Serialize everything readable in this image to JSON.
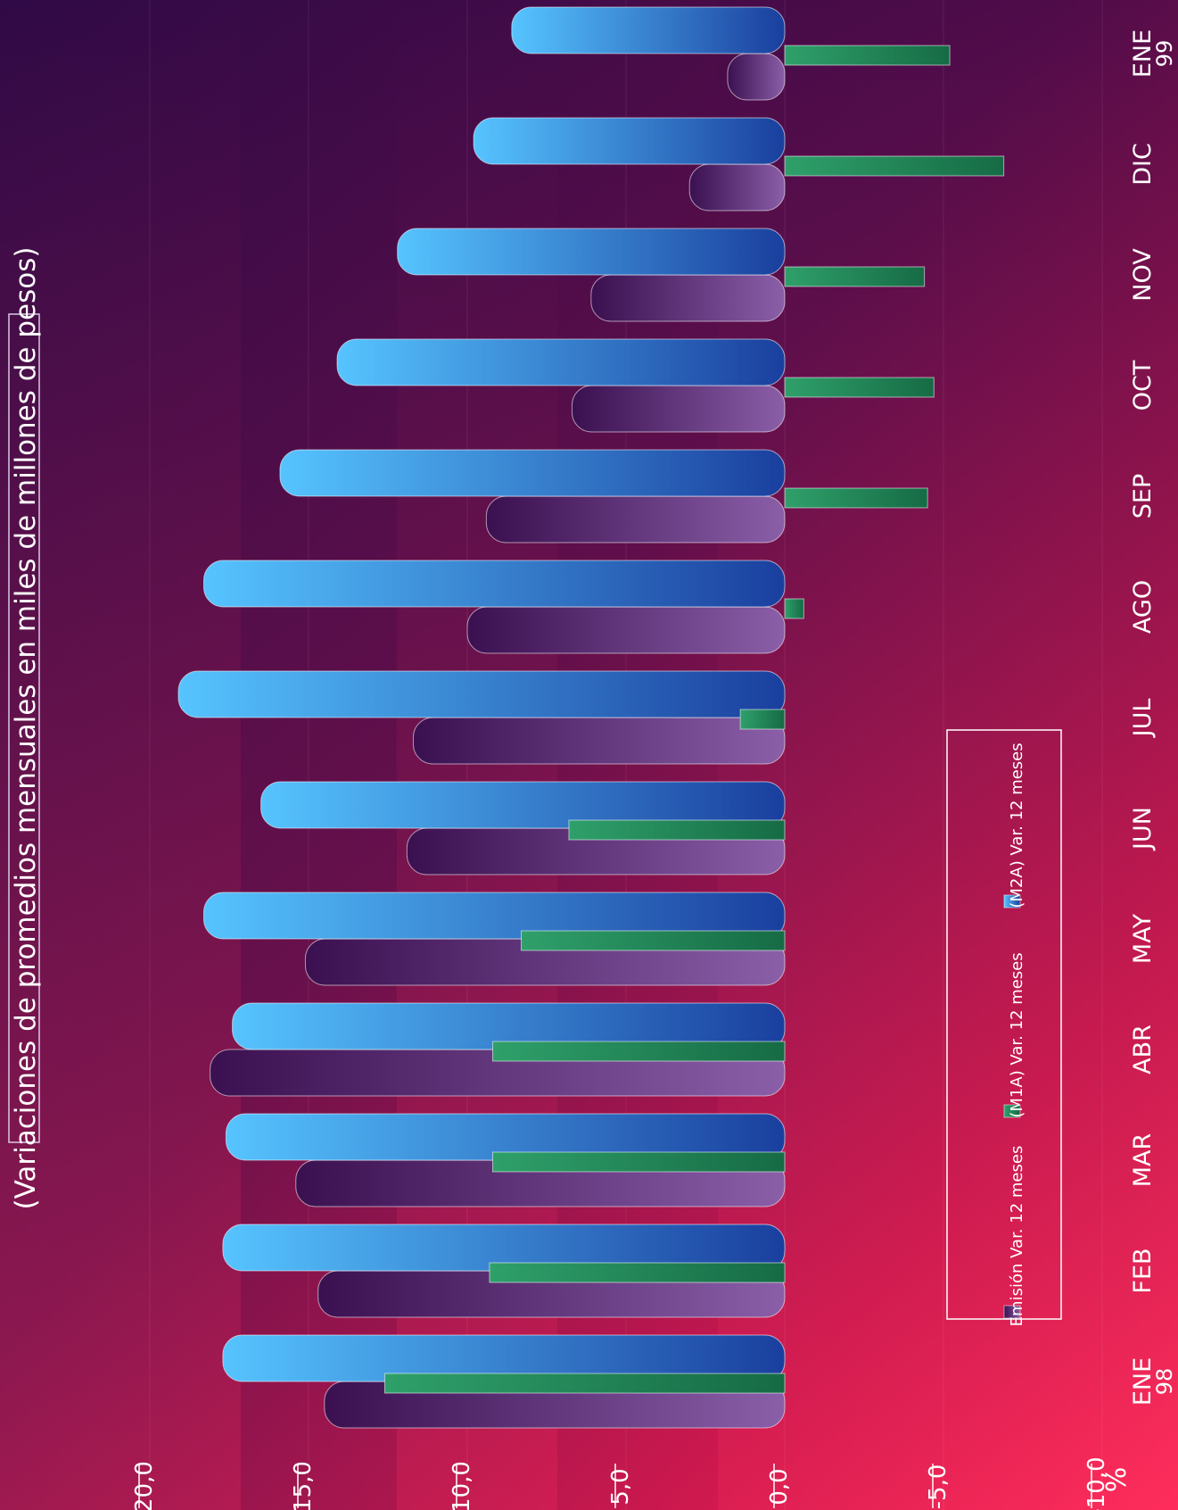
{
  "chart_data": {
    "type": "bar",
    "orientation": "horizontal",
    "title": "(Variaciones de promedios mensuales en miles de millones de pesos)",
    "unit_label": "%",
    "categories": [
      {
        "line1": "ENE",
        "line2": "98"
      },
      {
        "line1": "FEB",
        "line2": ""
      },
      {
        "line1": "MAR",
        "line2": ""
      },
      {
        "line1": "ABR",
        "line2": ""
      },
      {
        "line1": "MAY",
        "line2": ""
      },
      {
        "line1": "JUN",
        "line2": ""
      },
      {
        "line1": "JUL",
        "line2": ""
      },
      {
        "line1": "AGO",
        "line2": ""
      },
      {
        "line1": "SEP",
        "line2": ""
      },
      {
        "line1": "OCT",
        "line2": ""
      },
      {
        "line1": "NOV",
        "line2": ""
      },
      {
        "line1": "DIC",
        "line2": ""
      },
      {
        "line1": "ENE",
        "line2": "99"
      }
    ],
    "value_axis": {
      "min": -10,
      "max": 22,
      "ticks": [
        -10,
        -5,
        0,
        5,
        10,
        15,
        20
      ],
      "tick_labels": [
        "-10,0",
        "-5,0",
        "0,0",
        "5,0",
        "10,0",
        "15,0",
        "20,0"
      ]
    },
    "series": [
      {
        "name": "Emisión Var. 12 meses",
        "color": "#6b3f8c",
        "values": [
          14.5,
          14.7,
          15.4,
          18.1,
          15.1,
          11.9,
          11.7,
          10.0,
          9.4,
          6.7,
          6.1,
          3.0,
          1.8
        ]
      },
      {
        "name": "(M1A) Var. 12 meses",
        "color": "#1f8a5a",
        "values": [
          12.6,
          9.3,
          9.2,
          9.2,
          8.3,
          6.8,
          1.4,
          -0.6,
          -4.5,
          -4.7,
          -4.4,
          -6.9,
          -5.2
        ]
      },
      {
        "name": "(M2A) Var. 12 meses",
        "color": "#2f7ad8",
        "values": [
          17.7,
          17.7,
          17.6,
          17.4,
          18.3,
          16.5,
          19.1,
          18.3,
          15.9,
          14.1,
          12.2,
          9.8,
          8.6
        ]
      }
    ],
    "legend": {
      "placement": "inside"
    }
  }
}
